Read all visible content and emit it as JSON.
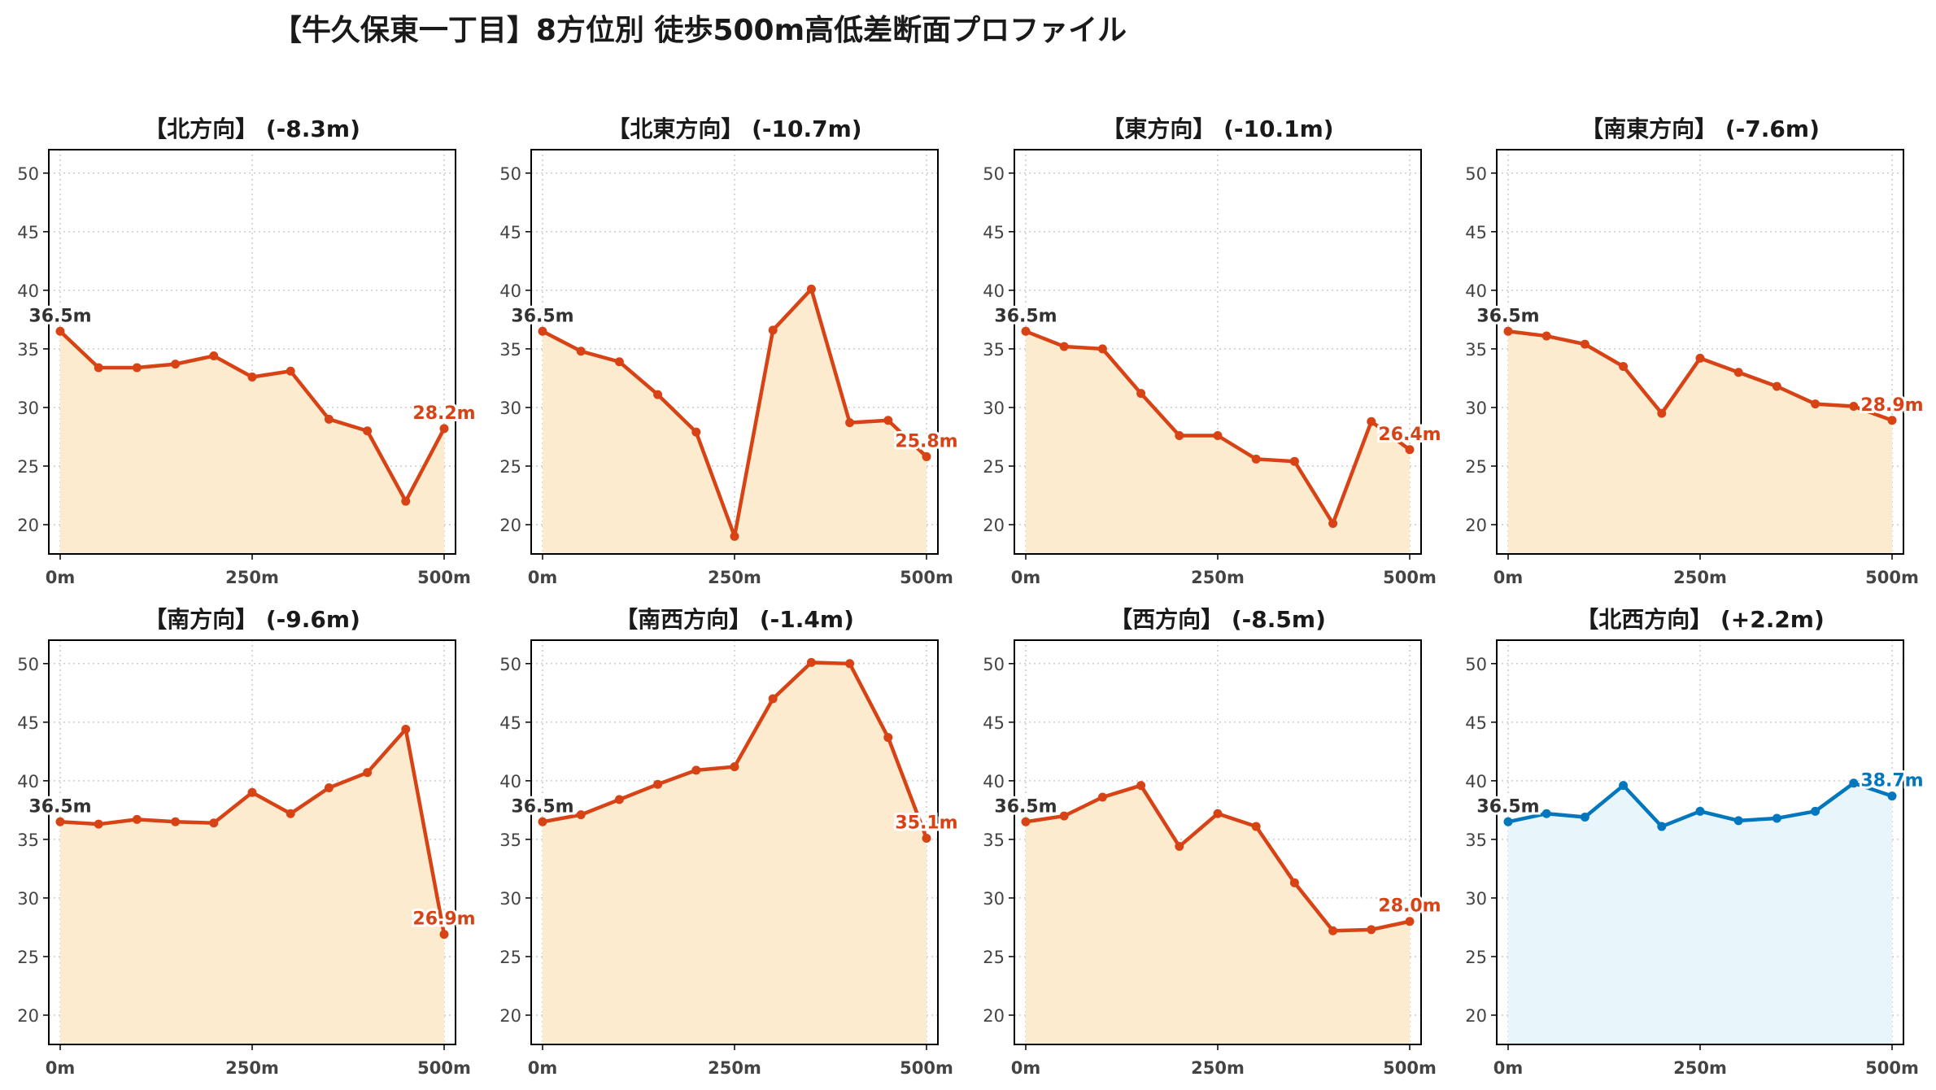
{
  "title": "【牛久保東一丁目】8方位別 徒歩500m高低差断面プロファイル",
  "colors": {
    "down_line": "#d84315",
    "down_fill": "#fdebd0",
    "up_line": "#0277bd",
    "up_fill": "#e8f5fb",
    "start_label": "#333333",
    "grid": "#cccccc",
    "axis": "#000000",
    "tick_text": "#444444"
  },
  "chart_data": [
    {
      "type": "line",
      "title": "【北方向】 (-8.3m)",
      "trend": "down",
      "x": [
        0,
        50,
        100,
        150,
        200,
        250,
        300,
        350,
        400,
        450,
        500
      ],
      "values": [
        36.5,
        33.4,
        33.4,
        33.7,
        34.4,
        32.6,
        33.1,
        29.0,
        28.0,
        22.0,
        28.2
      ],
      "start_label": "36.5m",
      "end_label": "28.2m",
      "xticks": [
        "0m",
        "250m",
        "500m"
      ],
      "yticks": [
        20,
        25,
        30,
        35,
        40,
        45,
        50
      ],
      "xlim": [
        0,
        500
      ],
      "ylim": [
        17.5,
        52
      ],
      "grid": true
    },
    {
      "type": "line",
      "title": "【北東方向】 (-10.7m)",
      "trend": "down",
      "x": [
        0,
        50,
        100,
        150,
        200,
        250,
        300,
        350,
        400,
        450,
        500
      ],
      "values": [
        36.5,
        34.8,
        33.9,
        31.1,
        27.9,
        19.0,
        36.6,
        40.1,
        28.7,
        28.9,
        25.8
      ],
      "start_label": "36.5m",
      "end_label": "25.8m",
      "xticks": [
        "0m",
        "250m",
        "500m"
      ],
      "yticks": [
        20,
        25,
        30,
        35,
        40,
        45,
        50
      ],
      "xlim": [
        0,
        500
      ],
      "ylim": [
        17.5,
        52
      ],
      "grid": true
    },
    {
      "type": "line",
      "title": "【東方向】 (-10.1m)",
      "trend": "down",
      "x": [
        0,
        50,
        100,
        150,
        200,
        250,
        300,
        350,
        400,
        450,
        500
      ],
      "values": [
        36.5,
        35.2,
        35.0,
        31.2,
        27.6,
        27.6,
        25.6,
        25.4,
        20.1,
        28.8,
        26.4
      ],
      "start_label": "36.5m",
      "end_label": "26.4m",
      "xticks": [
        "0m",
        "250m",
        "500m"
      ],
      "yticks": [
        20,
        25,
        30,
        35,
        40,
        45,
        50
      ],
      "xlim": [
        0,
        500
      ],
      "ylim": [
        17.5,
        52
      ],
      "grid": true
    },
    {
      "type": "line",
      "title": "【南東方向】 (-7.6m)",
      "trend": "down",
      "x": [
        0,
        50,
        100,
        150,
        200,
        250,
        300,
        350,
        400,
        450,
        500
      ],
      "values": [
        36.5,
        36.1,
        35.4,
        33.5,
        29.5,
        34.2,
        33.0,
        31.8,
        30.3,
        30.1,
        28.9
      ],
      "start_label": "36.5m",
      "end_label": "28.9m",
      "xticks": [
        "0m",
        "250m",
        "500m"
      ],
      "yticks": [
        20,
        25,
        30,
        35,
        40,
        45,
        50
      ],
      "xlim": [
        0,
        500
      ],
      "ylim": [
        17.5,
        52
      ],
      "grid": true
    },
    {
      "type": "line",
      "title": "【南方向】 (-9.6m)",
      "trend": "down",
      "x": [
        0,
        50,
        100,
        150,
        200,
        250,
        300,
        350,
        400,
        450,
        500
      ],
      "values": [
        36.5,
        36.3,
        36.7,
        36.5,
        36.4,
        39.0,
        37.2,
        39.4,
        40.7,
        44.4,
        26.9
      ],
      "start_label": "36.5m",
      "end_label": "26.9m",
      "xticks": [
        "0m",
        "250m",
        "500m"
      ],
      "yticks": [
        20,
        25,
        30,
        35,
        40,
        45,
        50
      ],
      "xlim": [
        0,
        500
      ],
      "ylim": [
        17.5,
        52
      ],
      "grid": true
    },
    {
      "type": "line",
      "title": "【南西方向】 (-1.4m)",
      "trend": "down",
      "x": [
        0,
        50,
        100,
        150,
        200,
        250,
        300,
        350,
        400,
        450,
        500
      ],
      "values": [
        36.5,
        37.1,
        38.4,
        39.7,
        40.9,
        41.2,
        47.0,
        50.1,
        50.0,
        43.7,
        35.1
      ],
      "start_label": "36.5m",
      "end_label": "35.1m",
      "xticks": [
        "0m",
        "250m",
        "500m"
      ],
      "yticks": [
        20,
        25,
        30,
        35,
        40,
        45,
        50
      ],
      "xlim": [
        0,
        500
      ],
      "ylim": [
        17.5,
        52
      ],
      "grid": true
    },
    {
      "type": "line",
      "title": "【西方向】 (-8.5m)",
      "trend": "down",
      "x": [
        0,
        50,
        100,
        150,
        200,
        250,
        300,
        350,
        400,
        450,
        500
      ],
      "values": [
        36.5,
        37.0,
        38.6,
        39.6,
        34.4,
        37.2,
        36.1,
        31.3,
        27.2,
        27.3,
        28.0
      ],
      "start_label": "36.5m",
      "end_label": "28.0m",
      "xticks": [
        "0m",
        "250m",
        "500m"
      ],
      "yticks": [
        20,
        25,
        30,
        35,
        40,
        45,
        50
      ],
      "xlim": [
        0,
        500
      ],
      "ylim": [
        17.5,
        52
      ],
      "grid": true
    },
    {
      "type": "line",
      "title": "【北西方向】 (+2.2m)",
      "trend": "up",
      "x": [
        0,
        50,
        100,
        150,
        200,
        250,
        300,
        350,
        400,
        450,
        500
      ],
      "values": [
        36.5,
        37.2,
        36.9,
        39.6,
        36.1,
        37.4,
        36.6,
        36.8,
        37.4,
        39.8,
        38.7
      ],
      "start_label": "36.5m",
      "end_label": "38.7m",
      "xticks": [
        "0m",
        "250m",
        "500m"
      ],
      "yticks": [
        20,
        25,
        30,
        35,
        40,
        45,
        50
      ],
      "xlim": [
        0,
        500
      ],
      "ylim": [
        17.5,
        52
      ],
      "grid": true
    }
  ]
}
